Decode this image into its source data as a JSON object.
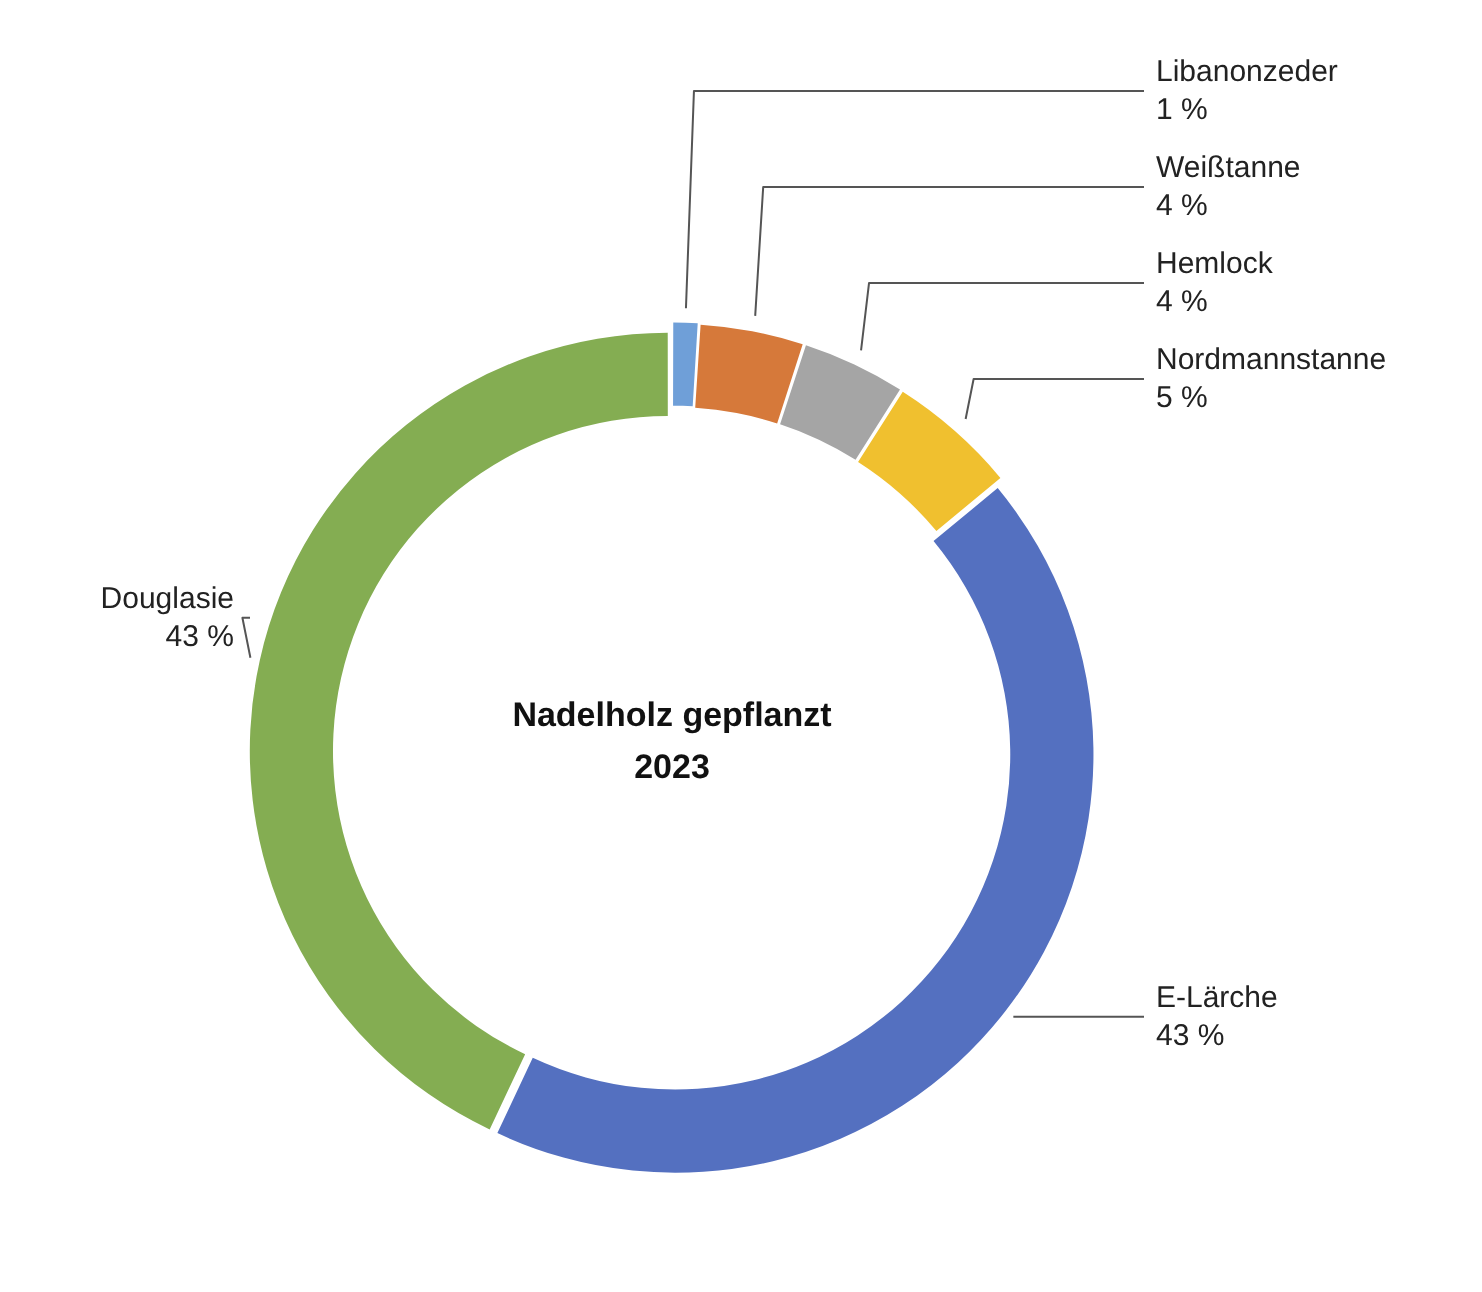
{
  "chart_data": {
    "type": "donut",
    "title": "Nadelholz gepflanzt 2023",
    "categories": [
      "Libanonzeder",
      "Weißtanne",
      "Hemlock",
      "Nordmannstanne",
      "E-Lärche",
      "Douglasie"
    ],
    "values": [
      1,
      4,
      4,
      5,
      43,
      43
    ],
    "colors": [
      "#6f9fd8",
      "#d6793a",
      "#a5a5a5",
      "#f0c02f",
      "#5470c0",
      "#84ad52"
    ],
    "value_labels": [
      "1 %",
      "4 %",
      "4 %",
      "5 %",
      "43 %",
      "43 %"
    ]
  }
}
